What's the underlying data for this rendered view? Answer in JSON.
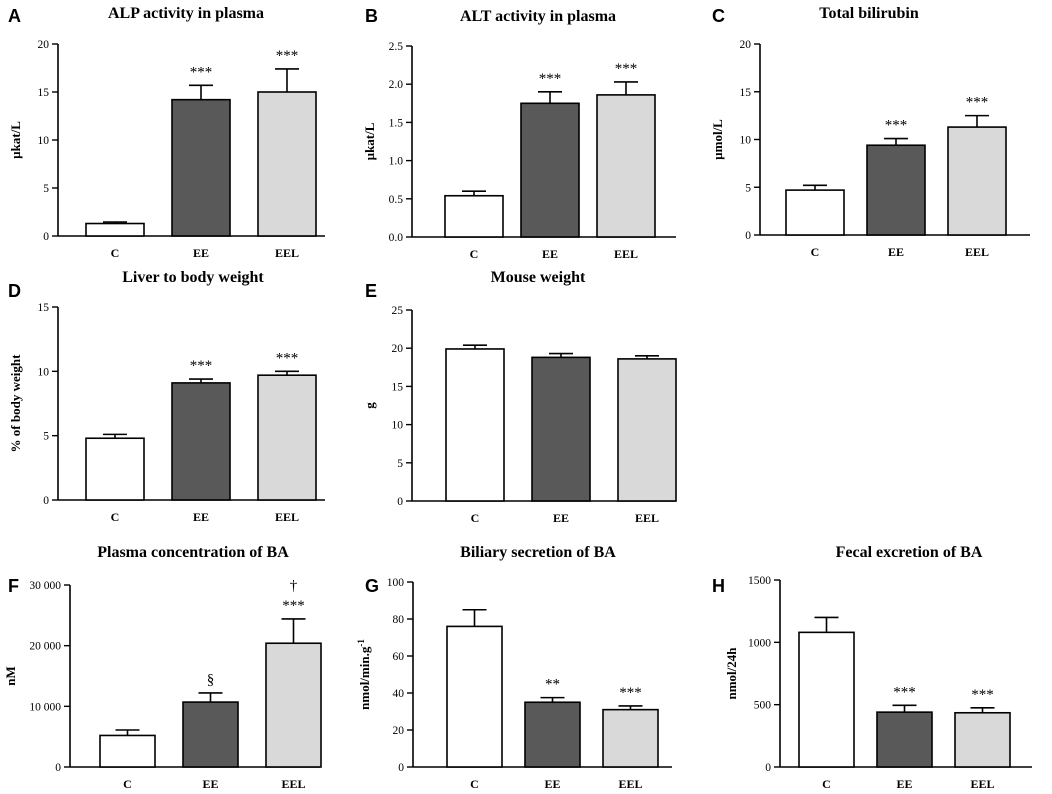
{
  "chart_data": [
    {
      "panel": "A",
      "type": "bar",
      "title": "ALP activity in plasma",
      "xlabel": "",
      "ylabel": "µkat/L",
      "categories": [
        "C",
        "EE",
        "EEL"
      ],
      "values": [
        1.3,
        14.2,
        15.0
      ],
      "errors": [
        0.15,
        1.5,
        2.4
      ],
      "annotations": [
        [],
        [
          "***"
        ],
        [
          "***"
        ]
      ],
      "ylim": [
        0,
        20
      ],
      "yticks": [
        0,
        5,
        10,
        15,
        20
      ],
      "ytick_labels": [
        "0",
        "5",
        "10",
        "15",
        "20"
      ],
      "bar_colors": [
        "#ffffff",
        "#595959",
        "#d9d9d9"
      ]
    },
    {
      "panel": "B",
      "type": "bar",
      "title": "ALT activity in plasma",
      "xlabel": "",
      "ylabel": "µkat/L",
      "categories": [
        "C",
        "EE",
        "EEL"
      ],
      "values": [
        0.54,
        1.75,
        1.86
      ],
      "errors": [
        0.06,
        0.15,
        0.17
      ],
      "annotations": [
        [],
        [
          "***"
        ],
        [
          "***"
        ]
      ],
      "ylim": [
        0,
        2.5
      ],
      "yticks": [
        0,
        0.5,
        1.0,
        1.5,
        2.0,
        2.5
      ],
      "ytick_labels": [
        "0.0",
        "0.5",
        "1.0",
        "1.5",
        "2.0",
        "2.5"
      ],
      "bar_colors": [
        "#ffffff",
        "#595959",
        "#d9d9d9"
      ]
    },
    {
      "panel": "C",
      "type": "bar",
      "title": "Total bilirubin",
      "xlabel": "",
      "ylabel": "µmol/L",
      "categories": [
        "C",
        "EE",
        "EEL"
      ],
      "values": [
        4.7,
        9.4,
        11.3
      ],
      "errors": [
        0.5,
        0.7,
        1.2
      ],
      "annotations": [
        [],
        [
          "***"
        ],
        [
          "***"
        ]
      ],
      "ylim": [
        0,
        20
      ],
      "yticks": [
        0,
        5,
        10,
        15,
        20
      ],
      "ytick_labels": [
        "0",
        "5",
        "10",
        "15",
        "20"
      ],
      "bar_colors": [
        "#ffffff",
        "#595959",
        "#d9d9d9"
      ]
    },
    {
      "panel": "D",
      "type": "bar",
      "title": "Liver to body weight",
      "xlabel": "",
      "ylabel": "% of body weight",
      "categories": [
        "C",
        "EE",
        "EEL"
      ],
      "values": [
        4.8,
        9.1,
        9.7
      ],
      "errors": [
        0.3,
        0.3,
        0.3
      ],
      "annotations": [
        [],
        [
          "***"
        ],
        [
          "***"
        ]
      ],
      "ylim": [
        0,
        15
      ],
      "yticks": [
        0,
        5,
        10,
        15
      ],
      "ytick_labels": [
        "0",
        "5",
        "10",
        "15"
      ],
      "bar_colors": [
        "#ffffff",
        "#595959",
        "#d9d9d9"
      ]
    },
    {
      "panel": "E",
      "type": "bar",
      "title": "Mouse weight",
      "xlabel": "",
      "ylabel": "g",
      "categories": [
        "C",
        "EE",
        "EEL"
      ],
      "values": [
        19.9,
        18.8,
        18.6
      ],
      "errors": [
        0.5,
        0.5,
        0.4
      ],
      "annotations": [
        [],
        [],
        []
      ],
      "ylim": [
        0,
        25
      ],
      "yticks": [
        0,
        5,
        10,
        15,
        20,
        25
      ],
      "ytick_labels": [
        "0",
        "5",
        "10",
        "15",
        "20",
        "25"
      ],
      "bar_colors": [
        "#ffffff",
        "#595959",
        "#d9d9d9"
      ]
    },
    {
      "panel": "F",
      "type": "bar",
      "title": "Plasma concentration of BA",
      "xlabel": "",
      "ylabel": "nM",
      "categories": [
        "C",
        "EE",
        "EEL"
      ],
      "values": [
        5200,
        10700,
        20400
      ],
      "errors": [
        900,
        1500,
        4000
      ],
      "annotations": [
        [],
        [
          "§"
        ],
        [
          "***",
          "†"
        ]
      ],
      "ylim": [
        0,
        30000
      ],
      "yticks": [
        0,
        10000,
        20000,
        30000
      ],
      "ytick_labels": [
        "0",
        "10 000",
        "20 000",
        "30 000"
      ],
      "bar_colors": [
        "#ffffff",
        "#595959",
        "#d9d9d9"
      ]
    },
    {
      "panel": "G",
      "type": "bar",
      "title": "Biliary secretion of BA",
      "xlabel": "",
      "ylabel": "nmol/min.g",
      "ylabel_sup": "-1",
      "categories": [
        "C",
        "EE",
        "EEL"
      ],
      "values": [
        76,
        35,
        31
      ],
      "errors": [
        9,
        2.5,
        2
      ],
      "annotations": [
        [],
        [
          "**"
        ],
        [
          "***"
        ]
      ],
      "ylim": [
        0,
        100
      ],
      "yticks": [
        0,
        20,
        40,
        60,
        80,
        100
      ],
      "ytick_labels": [
        "0",
        "20",
        "40",
        "60",
        "80",
        "100"
      ],
      "bar_colors": [
        "#ffffff",
        "#595959",
        "#d9d9d9"
      ]
    },
    {
      "panel": "H",
      "type": "bar",
      "title": "Fecal excretion of BA",
      "xlabel": "",
      "ylabel": "nmol/24h",
      "categories": [
        "C",
        "EE",
        "EEL"
      ],
      "values": [
        1080,
        440,
        435
      ],
      "errors": [
        120,
        55,
        40
      ],
      "annotations": [
        [],
        [
          "***"
        ],
        [
          "***"
        ]
      ],
      "ylim": [
        0,
        1500
      ],
      "yticks": [
        0,
        500,
        1000,
        1500
      ],
      "ytick_labels": [
        "0",
        "500",
        "1000",
        "1500"
      ],
      "bar_colors": [
        "#ffffff",
        "#595959",
        "#d9d9d9"
      ]
    }
  ]
}
